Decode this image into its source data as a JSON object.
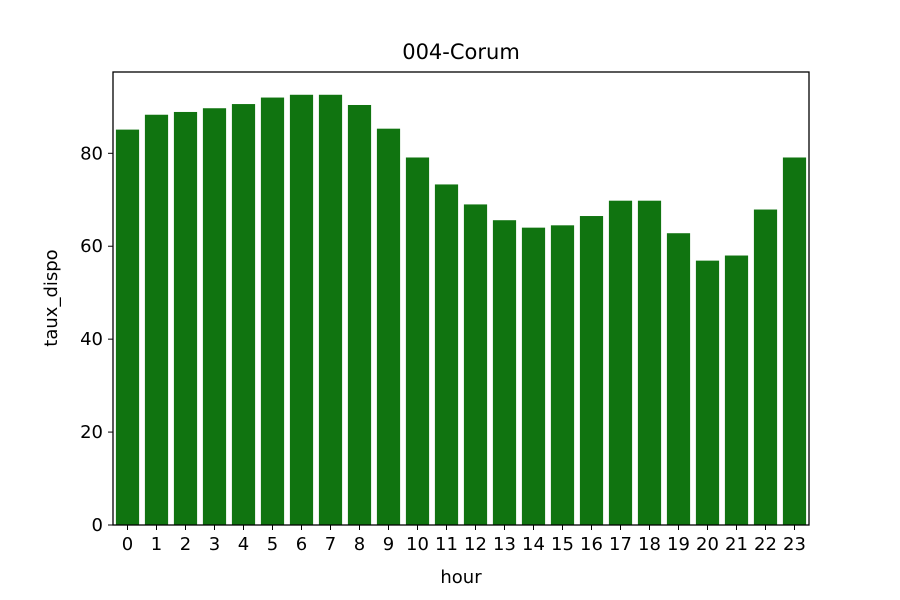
{
  "chart_data": {
    "type": "bar",
    "title": "004-Corum",
    "xlabel": "hour",
    "ylabel": "taux_dispo",
    "categories": [
      "0",
      "1",
      "2",
      "3",
      "4",
      "5",
      "6",
      "7",
      "8",
      "9",
      "10",
      "11",
      "12",
      "13",
      "14",
      "15",
      "16",
      "17",
      "18",
      "19",
      "20",
      "21",
      "22",
      "23"
    ],
    "values": [
      85.1,
      88.3,
      88.9,
      89.7,
      90.6,
      92.0,
      92.6,
      92.6,
      90.4,
      85.3,
      79.1,
      73.3,
      69.0,
      65.6,
      64.0,
      64.5,
      66.5,
      69.8,
      69.8,
      62.8,
      56.9,
      58.0,
      67.9,
      79.1
    ],
    "ylim": [
      0,
      97.5
    ],
    "yticks": [
      0,
      20,
      40,
      60,
      80
    ],
    "grid": false,
    "bar_color": "#107410"
  }
}
